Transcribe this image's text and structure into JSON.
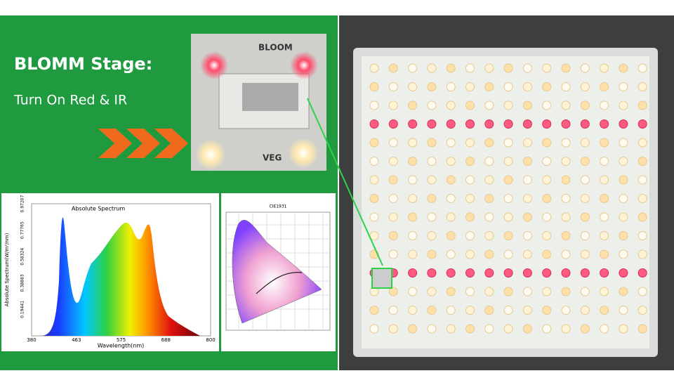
{
  "banner": {
    "title": "BLOMM Stage:",
    "subtitle": "Turn On Red & IR"
  },
  "switch": {
    "top_label": "BLOOM",
    "bottom_label": "VEG"
  },
  "spectrum": {
    "title": "Absolute Spectrum",
    "x_label": "Wavelength(nm)",
    "y_label": "Absolute Spectrum(W/m²/nm)",
    "x_ticks": [
      "380",
      "463",
      "575",
      "688",
      "800"
    ],
    "y_ticks": [
      "0.19441",
      "0.38883",
      "0.58324",
      "0.77765",
      "0.97207"
    ]
  },
  "cie": {
    "title": "CIE1931"
  }
}
